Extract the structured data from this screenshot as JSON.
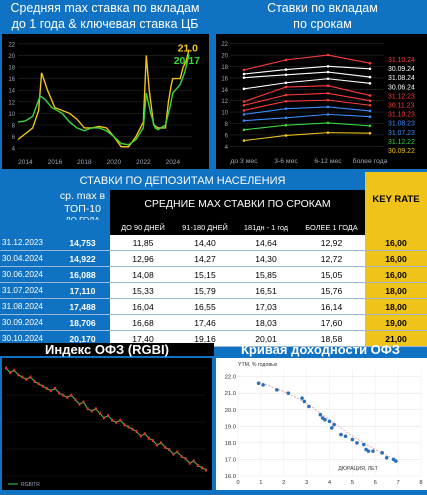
{
  "colors": {
    "bg": "#0f72c2",
    "yellow": "#f0c31a",
    "green": "#39d63b",
    "black": "#000000"
  },
  "panel1": {
    "title_line1": "Средняя max ставка по вкладам",
    "title_line2": "до 1 года & ключевая ставка ЦБ",
    "label_key": "21.0",
    "label_dep": "20.17"
  },
  "panel2": {
    "title_line1": "Ставки по вкладам",
    "title_line2": "по срокам"
  },
  "table": {
    "title": "СТАВКИ ПО ДЕПОЗИТАМ НАСЕЛЕНИЯ",
    "top10_h1": "ср. max в",
    "top10_h2": "ТОП-10",
    "top10_h3": "ДО ГОДА",
    "avg_header": "СРЕДНИЕ MAX СТАВКИ ПО СРОКАМ",
    "key_header": "KEY RATE",
    "col_headers": [
      "ДО 90 ДНЕЙ",
      "91-180 ДНЕЙ",
      "181дн - 1 год",
      "БОЛЕЕ 1 ГОДА"
    ],
    "rows": [
      {
        "date": "31.12.2023",
        "top": "14,753",
        "v": [
          "11,85",
          "14,40",
          "14,64",
          "12,92"
        ],
        "key": "16,00"
      },
      {
        "date": "30.04.2024",
        "top": "14,922",
        "v": [
          "12,96",
          "14,27",
          "14,30",
          "12,72"
        ],
        "key": "16,00"
      },
      {
        "date": "30.06.2024",
        "top": "16,088",
        "v": [
          "14,08",
          "15,15",
          "15,85",
          "15,05"
        ],
        "key": "16,00"
      },
      {
        "date": "31.07.2024",
        "top": "17,110",
        "v": [
          "15,33",
          "15,79",
          "16,51",
          "15,76"
        ],
        "key": "18,00"
      },
      {
        "date": "31.08.2024",
        "top": "17,488",
        "v": [
          "16,04",
          "16,55",
          "17,03",
          "16,14"
        ],
        "key": "18,00"
      },
      {
        "date": "30.09.2024",
        "top": "18,706",
        "v": [
          "16,68",
          "17,46",
          "18,03",
          "17,60"
        ],
        "key": "19,00"
      },
      {
        "date": "30.10.2024",
        "top": "20,170",
        "v": [
          "17,40",
          "19,16",
          "20,01",
          "18,58"
        ],
        "key": "21,00"
      }
    ]
  },
  "panel3": {
    "title": "Индекс ОФЗ (RGBI)",
    "legend": "RGBITR"
  },
  "panel4": {
    "title": "Кривая доходности ОФЗ",
    "ylabel": "YTM, % годовых",
    "xlabel": "ДЮРАЦИЯ, ЛЕТ"
  },
  "chart_data": [
    {
      "type": "line",
      "title": "Средняя max ставка по вкладам до 1 года & ключевая ставка ЦБ",
      "x_ticks": [
        "2014",
        "2016",
        "2018",
        "2020",
        "2022",
        "2024"
      ],
      "y_ticks": [
        4,
        6,
        8,
        10,
        12,
        14,
        16,
        18,
        20,
        22
      ],
      "ylim": [
        3,
        23
      ],
      "xlim": [
        2013.5,
        2025.3
      ],
      "series": [
        {
          "color": "#f0c31a",
          "x": [
            2013.5,
            2014.5,
            2014.9,
            2015.1,
            2015.5,
            2016,
            2016.5,
            2017,
            2017.5,
            2018,
            2018.5,
            2019,
            2019.5,
            2020,
            2020.5,
            2021,
            2021.5,
            2022,
            2022.2,
            2022.4,
            2022.7,
            2023,
            2023.5,
            2023.7,
            2023.9,
            2024,
            2024.5,
            2024.7,
            2024.9,
            2025.1
          ],
          "y": [
            5.5,
            7.5,
            10.5,
            17,
            14,
            11,
            10.5,
            10,
            9,
            7.5,
            7.5,
            7.75,
            7.5,
            6,
            4.25,
            4.25,
            6,
            8.5,
            20,
            14,
            8,
            7.5,
            7.5,
            12,
            15,
            16,
            16,
            18,
            19,
            21
          ]
        },
        {
          "color": "#39d63b",
          "x": [
            2013.5,
            2014,
            2014.5,
            2015,
            2015.3,
            2015.8,
            2016.5,
            2017,
            2017.5,
            2018,
            2018.5,
            2019,
            2019.5,
            2020,
            2020.5,
            2021,
            2021.5,
            2022,
            2022.2,
            2022.5,
            2022.8,
            2023,
            2023.5,
            2023.8,
            2024,
            2024.5,
            2024.8,
            2025.1
          ],
          "y": [
            8.5,
            8.7,
            9.5,
            13,
            12.5,
            11,
            10,
            8.5,
            7.5,
            7,
            7.5,
            7.5,
            7,
            6,
            4.8,
            4.6,
            5.5,
            7.5,
            13.5,
            10,
            7.5,
            7.2,
            8,
            11,
            13.5,
            15,
            17,
            20.17
          ]
        }
      ]
    },
    {
      "type": "line",
      "title": "Ставки по вкладам по срокам",
      "categories": [
        "до 3 мес",
        "3-6 мес",
        "6-12 мес",
        "более года"
      ],
      "y_ticks": [
        4,
        6,
        8,
        10,
        12,
        14,
        16,
        18,
        20,
        22
      ],
      "ylim": [
        3,
        23
      ],
      "series": [
        {
          "name": "31.10.24",
          "color": "#ff3b3b",
          "values": [
            17.4,
            19.16,
            20.01,
            18.58
          ]
        },
        {
          "name": "30.09.24",
          "color": "#ffffff",
          "values": [
            16.68,
            17.46,
            18.03,
            17.6
          ]
        },
        {
          "name": "31.08.24",
          "color": "#ffffff",
          "values": [
            16.04,
            16.55,
            17.03,
            16.14
          ]
        },
        {
          "name": "30.06.24",
          "color": "#ffffff",
          "values": [
            14.08,
            15.15,
            15.85,
            15.05
          ]
        },
        {
          "name": "31.12.23",
          "color": "#ff3b3b",
          "values": [
            11.85,
            14.4,
            14.64,
            12.92
          ]
        },
        {
          "name": "30.11.23",
          "color": "#ff3b3b",
          "values": [
            11.2,
            13.0,
            13.3,
            12.0
          ]
        },
        {
          "name": "31.10.23",
          "color": "#ff3b3b",
          "values": [
            10.3,
            11.9,
            12.1,
            11.2
          ]
        },
        {
          "name": "31.08.23",
          "color": "#3b8bff",
          "values": [
            9.6,
            10.6,
            10.9,
            10.2
          ]
        },
        {
          "name": "31.07.23",
          "color": "#3b8bff",
          "values": [
            8.5,
            9.0,
            9.6,
            9.2
          ]
        },
        {
          "name": "31.12.22",
          "color": "#39d63b",
          "values": [
            6.9,
            7.7,
            8.1,
            7.6
          ]
        },
        {
          "name": "30.09.22",
          "color": "#f0c31a",
          "values": [
            5.0,
            5.9,
            6.4,
            6.3
          ]
        }
      ]
    },
    {
      "type": "line",
      "title": "Индекс ОФЗ (RGBI)",
      "series": [
        {
          "name": "RGBITR",
          "color": "#39d63b",
          "values": [
            100,
            99,
            99.5,
            98.5,
            98,
            97.5,
            98,
            97,
            96.5,
            96,
            95.5,
            95,
            95.5,
            94.5,
            94,
            93.5,
            94,
            93,
            92,
            92.5,
            91,
            90.5,
            91,
            90,
            89,
            89.5,
            88.5,
            88,
            88.5,
            87.5,
            87,
            86.5,
            86,
            85,
            85.5,
            84.5,
            84,
            83,
            83.5,
            82.5,
            82,
            81,
            81.5,
            80.5,
            80,
            79,
            79.5,
            78.5,
            78,
            77.5
          ]
        }
      ]
    },
    {
      "type": "scatter",
      "title": "Кривая доходности ОФЗ",
      "xlabel": "ДЮРАЦИЯ, ЛЕТ",
      "ylabel": "YTM, % годовых",
      "x_ticks": [
        0,
        1,
        2,
        3,
        4,
        5,
        6,
        7,
        8
      ],
      "y_ticks": [
        16.0,
        17.0,
        18.0,
        19.0,
        20.0,
        21.0,
        22.0
      ],
      "xlim": [
        0,
        8
      ],
      "ylim": [
        16.0,
        22.4
      ],
      "points": [
        [
          0.9,
          21.6
        ],
        [
          1.1,
          21.5
        ],
        [
          1.7,
          21.2
        ],
        [
          2.2,
          21.0
        ],
        [
          2.8,
          20.7
        ],
        [
          2.9,
          20.5
        ],
        [
          3.1,
          20.2
        ],
        [
          3.6,
          19.7
        ],
        [
          3.7,
          19.5
        ],
        [
          3.8,
          19.4
        ],
        [
          4.0,
          19.3
        ],
        [
          4.2,
          19.1
        ],
        [
          4.1,
          18.9
        ],
        [
          4.5,
          18.5
        ],
        [
          4.7,
          18.4
        ],
        [
          5.0,
          18.2
        ],
        [
          5.2,
          18.0
        ],
        [
          5.5,
          17.9
        ],
        [
          5.6,
          17.6
        ],
        [
          5.7,
          17.5
        ],
        [
          5.9,
          17.5
        ],
        [
          6.3,
          17.4
        ],
        [
          6.5,
          17.1
        ],
        [
          6.8,
          17.0
        ],
        [
          6.9,
          16.9
        ]
      ],
      "trend": [
        [
          0.9,
          21.7
        ],
        [
          2,
          21.1
        ],
        [
          3,
          20.4
        ],
        [
          4,
          19.4
        ],
        [
          5,
          18.4
        ],
        [
          6,
          17.6
        ],
        [
          7,
          16.9
        ]
      ]
    }
  ]
}
